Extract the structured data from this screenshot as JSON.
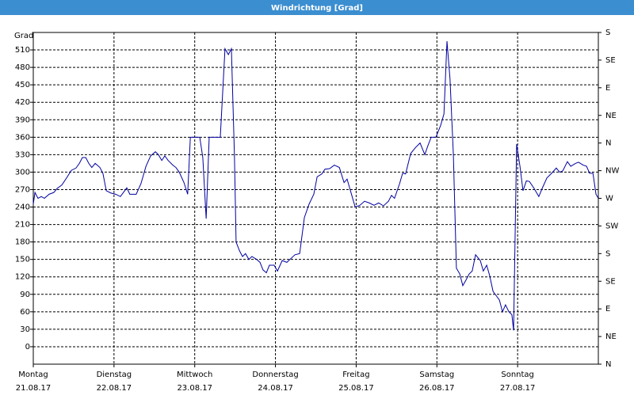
{
  "chart_data": {
    "type": "line",
    "title": "Windrichtung [Grad]",
    "y_label": "Grad",
    "xlim": [
      0,
      168
    ],
    "ylim": [
      -30,
      540
    ],
    "y2lim": [
      0,
      540
    ],
    "xticks": [
      {
        "value": 0,
        "label": "Montag"
      },
      {
        "value": 24,
        "label": "Dienstag"
      },
      {
        "value": 48,
        "label": "Mittwoch"
      },
      {
        "value": 72,
        "label": "Donnerstag"
      },
      {
        "value": 96,
        "label": "Freitag"
      },
      {
        "value": 120,
        "label": "Samstag"
      },
      {
        "value": 144,
        "label": "Sonntag"
      }
    ],
    "xtick_dates": [
      "21.08.17",
      "22.08.17",
      "23.08.17",
      "24.08.17",
      "25.08.17",
      "26.08.17",
      "27.08.17"
    ],
    "yticks": [
      0,
      30,
      60,
      90,
      120,
      150,
      180,
      210,
      240,
      270,
      300,
      330,
      360,
      390,
      420,
      450,
      480,
      510
    ],
    "y2ticks": [
      {
        "value": 540,
        "label": "S"
      },
      {
        "value": 495,
        "label": "SE"
      },
      {
        "value": 450,
        "label": "E"
      },
      {
        "value": 405,
        "label": "NE"
      },
      {
        "value": 360,
        "label": "N"
      },
      {
        "value": 315,
        "label": "NW"
      },
      {
        "value": 270,
        "label": "W"
      },
      {
        "value": 225,
        "label": "SW"
      },
      {
        "value": 180,
        "label": "S"
      },
      {
        "value": 135,
        "label": "SE"
      },
      {
        "value": 90,
        "label": "E"
      },
      {
        "value": 45,
        "label": "NE"
      },
      {
        "value": 0,
        "label": "N"
      }
    ],
    "grid": true,
    "series": [
      {
        "color": "#0000a0",
        "x": [
          0,
          0.5,
          1.4,
          2.4,
          3.3,
          4.7,
          6.1,
          7.1,
          8.5,
          9.9,
          11.3,
          12.7,
          13.7,
          14.6,
          15.6,
          16.5,
          17.4,
          18.4,
          19.8,
          20.7,
          21.7,
          23.1,
          24.5,
          25.9,
          27.8,
          28.7,
          30.6,
          32.0,
          33.5,
          34.9,
          36.3,
          37.2,
          38.2,
          39.1,
          40.1,
          41.5,
          42.4,
          43.4,
          44.8,
          45.9,
          46.7,
          47.6,
          49.5,
          50.4,
          51.4,
          52.3,
          54.2,
          55.6,
          57.0,
          58.0,
          58.9,
          59.8,
          60.3,
          61.3,
          62.2,
          63.1,
          64.1,
          65.0,
          66.4,
          67.4,
          68.3,
          69.3,
          70.2,
          71.6,
          72.6,
          74.0,
          75.4,
          76.3,
          77.8,
          79.2,
          80.6,
          82.0,
          83.4,
          84.4,
          85.8,
          86.7,
          88.1,
          89.5,
          91.0,
          92.4,
          93.3,
          94.7,
          95.7,
          97.1,
          98.5,
          99.9,
          101.3,
          102.7,
          104.1,
          105.6,
          106.5,
          107.4,
          108.9,
          109.8,
          110.7,
          112.2,
          113.6,
          115.0,
          116.4,
          117.3,
          118.3,
          119.7,
          121.1,
          122.1,
          123.0,
          123.9,
          124.9,
          125.8,
          126.8,
          127.7,
          128.7,
          129.6,
          130.5,
          131.5,
          132.9,
          133.8,
          134.8,
          135.7,
          136.7,
          137.6,
          138.6,
          139.5,
          140.4,
          141.4,
          142.3,
          142.8,
          143.7,
          144.7,
          145.6,
          146.6,
          147.5,
          148.9,
          150.3,
          151.3,
          152.7,
          154.1,
          155.5,
          156.5,
          157.4,
          158.8,
          159.8,
          161.2,
          162.1,
          163.5,
          164.5,
          165.4,
          166.4,
          167.3,
          168
        ],
        "values": [
          245,
          265,
          255,
          258,
          255,
          262,
          265,
          272,
          278,
          290,
          303,
          307,
          315,
          325,
          325,
          315,
          308,
          315,
          308,
          298,
          268,
          264,
          262,
          258,
          273,
          262,
          262,
          280,
          310,
          328,
          335,
          330,
          320,
          328,
          320,
          312,
          308,
          300,
          282,
          262,
          360,
          360,
          360,
          325,
          220,
          360,
          360,
          360,
          512,
          502,
          512,
          330,
          180,
          165,
          155,
          160,
          150,
          155,
          150,
          145,
          132,
          127,
          140,
          140,
          130,
          148,
          145,
          150,
          158,
          160,
          222,
          245,
          262,
          292,
          297,
          305,
          306,
          312,
          308,
          282,
          288,
          260,
          240,
          243,
          250,
          247,
          243,
          247,
          242,
          250,
          260,
          255,
          280,
          298,
          297,
          332,
          342,
          350,
          330,
          345,
          360,
          360,
          380,
          400,
          525,
          460,
          330,
          135,
          125,
          105,
          115,
          125,
          130,
          158,
          148,
          130,
          140,
          122,
          95,
          88,
          80,
          60,
          72,
          60,
          55,
          28,
          348,
          310,
          268,
          285,
          284,
          272,
          258,
          272,
          290,
          298,
          307,
          300,
          302,
          318,
          310,
          315,
          317,
          312,
          310,
          298,
          298,
          262,
          255
        ]
      }
    ]
  }
}
